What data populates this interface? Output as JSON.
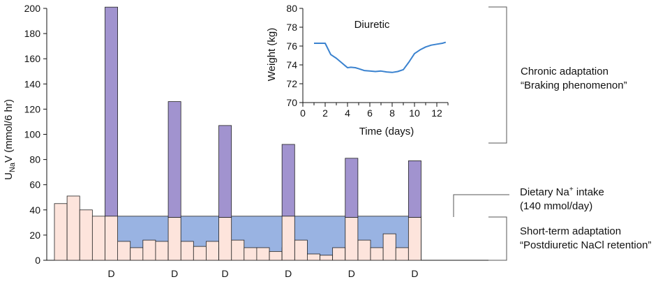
{
  "chart_data": [
    {
      "type": "bar",
      "ylabel_main": "U",
      "ylabel_sub": "Na",
      "ylabel_rest": "V (mmol/6 hr)",
      "ylim": [
        0,
        200
      ],
      "yticks": [
        0,
        20,
        40,
        60,
        80,
        100,
        120,
        140,
        160,
        180,
        200
      ],
      "diuretic_marker": "D",
      "dietary_intake_level": 35,
      "baseline_bars": [
        45,
        51,
        40,
        35,
        35,
        15,
        10,
        16,
        15,
        11,
        15,
        11,
        15,
        10,
        16,
        10,
        10,
        7,
        10,
        16,
        5,
        4,
        10,
        10,
        16,
        10,
        21,
        10,
        16
      ],
      "diuretic_bars": [
        {
          "position": 4,
          "base": 35,
          "peak": 201
        },
        {
          "position": 9,
          "base": 34,
          "peak": 126
        },
        {
          "position": 13,
          "base": 34,
          "peak": 107
        },
        {
          "position": 18,
          "base": 35,
          "peak": 92
        },
        {
          "position": 23,
          "base": 34,
          "peak": 81
        },
        {
          "position": 28,
          "base": 34,
          "peak": 79
        }
      ],
      "colors": {
        "bar_fill": "#fde4dc",
        "diuretic_fill": "#a193cf",
        "intake_band": "#99b3e2",
        "line": "#3a82cf"
      }
    },
    {
      "type": "line",
      "title": "Diuretic",
      "xlabel": "Time (days)",
      "ylabel": "Weight (kg)",
      "xlim": [
        0,
        13
      ],
      "ylim": [
        70,
        80
      ],
      "xticks": [
        0,
        2,
        4,
        6,
        8,
        10,
        12
      ],
      "yticks": [
        70,
        72,
        74,
        76,
        78,
        80
      ],
      "x": [
        1,
        2,
        2.5,
        3,
        3.5,
        3.8,
        4,
        4.3,
        4.7,
        5,
        5.5,
        6,
        6.5,
        7,
        7.5,
        8,
        8.5,
        9,
        9.5,
        10,
        10.5,
        11,
        11.5,
        12,
        12.5,
        12.8
      ],
      "y": [
        76.3,
        76.3,
        75.1,
        74.7,
        74.2,
        73.9,
        73.7,
        73.75,
        73.7,
        73.6,
        73.4,
        73.35,
        73.3,
        73.35,
        73.25,
        73.2,
        73.3,
        73.5,
        74.3,
        75.2,
        75.6,
        75.9,
        76.1,
        76.2,
        76.3,
        76.4
      ]
    }
  ],
  "annotations": {
    "chronic_line1": "Chronic adaptation",
    "chronic_line2": "“Braking phenomenon”",
    "dietary_main": "Dietary Na",
    "dietary_sup": "+",
    "dietary_rest": " intake",
    "dietary_line2": "(140 mmol/day)",
    "short_line1": "Short-term adaptation",
    "short_line2": "“Postdiuretic NaCl retention”"
  }
}
